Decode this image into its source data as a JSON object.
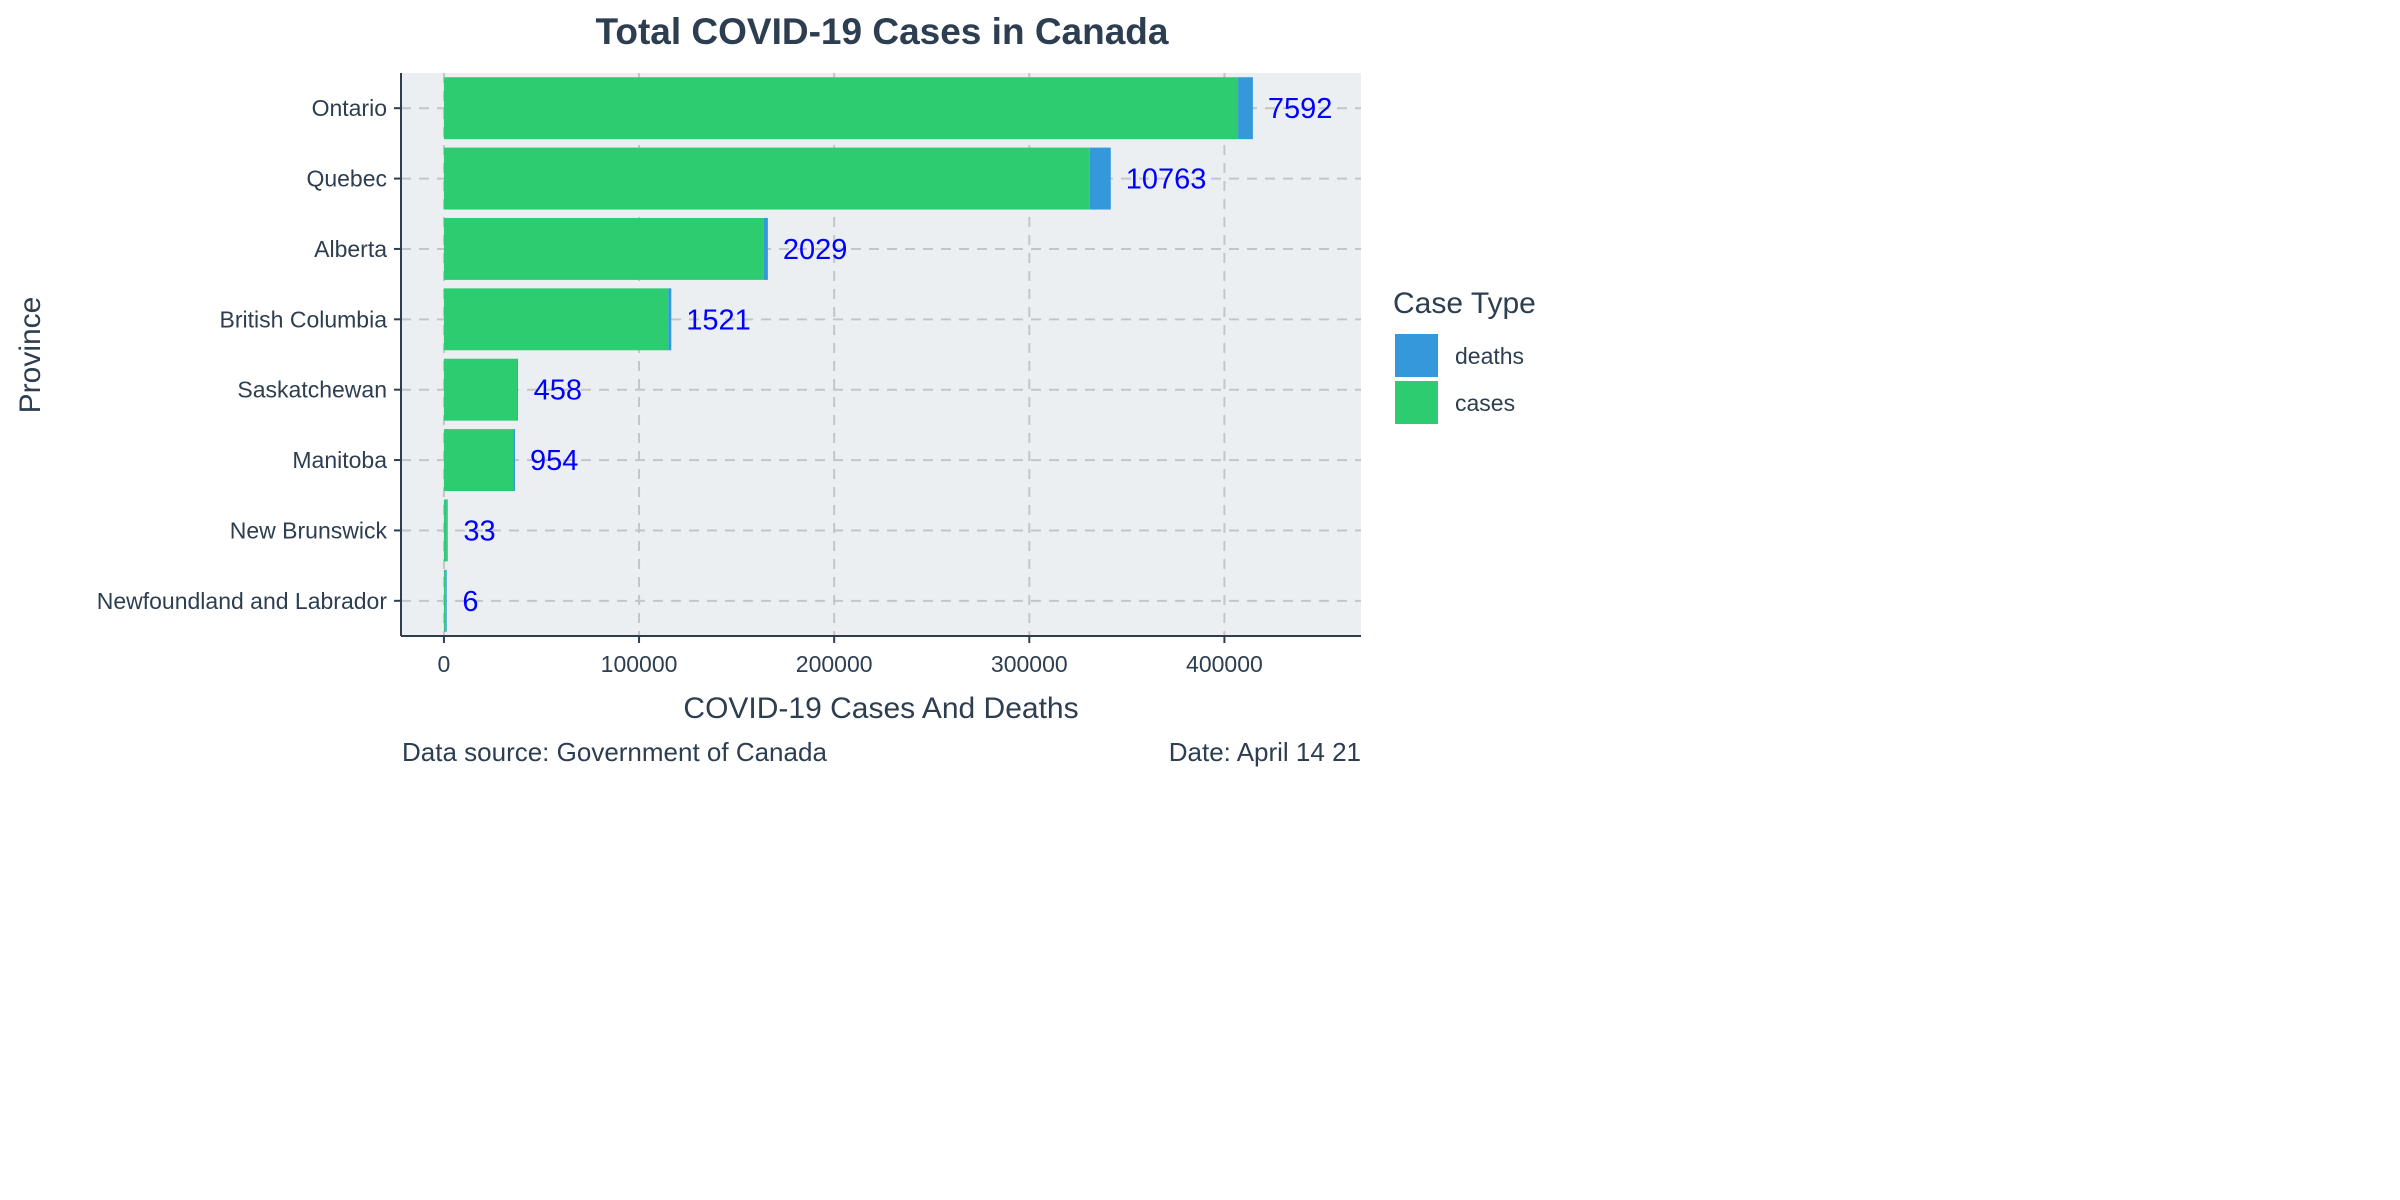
{
  "chart_data": {
    "type": "bar",
    "orientation": "horizontal",
    "stacked": true,
    "title": "Total COVID-19 Cases in Canada",
    "xlabel": "COVID-19 Cases And Deaths",
    "ylabel": "Province",
    "xlim": [
      -22000,
      470000
    ],
    "xticks": [
      0,
      100000,
      200000,
      300000,
      400000
    ],
    "xtick_labels": [
      "0",
      "100000",
      "200000",
      "300000",
      "400000"
    ],
    "grid": true,
    "legend_position": "right",
    "legend_title": "Case Type",
    "categories": [
      "Ontario",
      "Quebec",
      "Alberta",
      "British Columbia",
      "Saskatchewan",
      "Manitoba",
      "New Brunswick",
      "Newfoundland and Labrador"
    ],
    "series": [
      {
        "name": "deaths",
        "color": "#3498db",
        "values": [
          7592,
          10763,
          2029,
          1521,
          458,
          954,
          33,
          6
        ]
      },
      {
        "name": "cases",
        "color": "#2ecc71",
        "values": [
          407000,
          331000,
          164000,
          115000,
          37500,
          35500,
          1500,
          1000
        ]
      }
    ],
    "data_labels": [
      "7592",
      "10763",
      "2029",
      "1521",
      "458",
      "954",
      "33",
      "6"
    ],
    "caption_left": "Data source: Government of Canada",
    "caption_right": "Date: April 14 21"
  }
}
